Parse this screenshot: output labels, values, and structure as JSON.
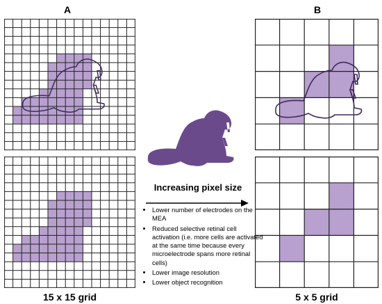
{
  "panels": {
    "left_label": "A",
    "right_label": "B",
    "left_caption": "15 x 15 grid",
    "right_caption": "5 x 5 grid"
  },
  "middle": {
    "title": "Increasing pixel size",
    "bullets": [
      "Lower number of electrodes on the MEA",
      "Reduced selective retinal cell activation (i.e. more cells are activated at the same time because every microelectrode spans more retinal cells)",
      "Lower image resolution",
      "Lower object recognition"
    ]
  },
  "colors": {
    "pixel_fill": "#b8a0cf",
    "beaver": "#6b4a8c",
    "grid_line": "#222222"
  },
  "grids": {
    "fine": {
      "size": 15,
      "filled": [
        [
          6,
          4
        ],
        [
          7,
          4
        ],
        [
          8,
          4
        ],
        [
          9,
          4
        ],
        [
          5,
          5
        ],
        [
          6,
          5
        ],
        [
          7,
          5
        ],
        [
          8,
          5
        ],
        [
          9,
          5
        ],
        [
          5,
          6
        ],
        [
          6,
          6
        ],
        [
          7,
          6
        ],
        [
          8,
          6
        ],
        [
          9,
          6
        ],
        [
          5,
          7
        ],
        [
          6,
          7
        ],
        [
          7,
          7
        ],
        [
          8,
          7
        ],
        [
          9,
          7
        ],
        [
          4,
          8
        ],
        [
          5,
          8
        ],
        [
          6,
          8
        ],
        [
          7,
          8
        ],
        [
          8,
          8
        ],
        [
          2,
          9
        ],
        [
          3,
          9
        ],
        [
          4,
          9
        ],
        [
          5,
          9
        ],
        [
          6,
          9
        ],
        [
          7,
          9
        ],
        [
          8,
          9
        ],
        [
          1,
          10
        ],
        [
          2,
          10
        ],
        [
          3,
          10
        ],
        [
          4,
          10
        ],
        [
          5,
          10
        ],
        [
          6,
          10
        ],
        [
          7,
          10
        ],
        [
          8,
          10
        ],
        [
          1,
          11
        ],
        [
          2,
          11
        ],
        [
          3,
          11
        ],
        [
          4,
          11
        ],
        [
          5,
          11
        ],
        [
          6,
          11
        ],
        [
          7,
          11
        ],
        [
          8,
          11
        ]
      ]
    },
    "coarse": {
      "size": 5,
      "filled": [
        [
          3,
          1
        ],
        [
          2,
          2
        ],
        [
          3,
          2
        ],
        [
          1,
          3
        ]
      ]
    }
  }
}
